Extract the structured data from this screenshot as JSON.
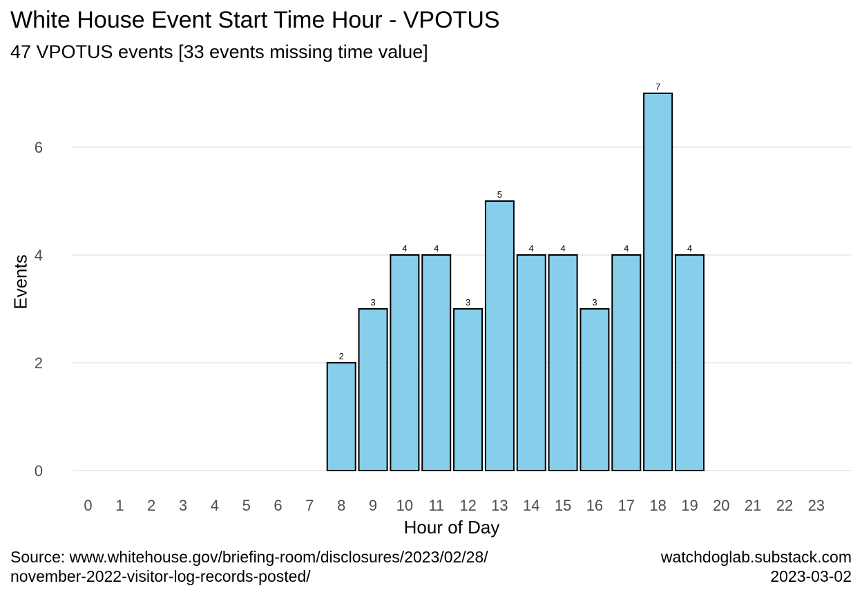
{
  "chart_data": {
    "type": "bar",
    "title": "White House Event Start Time Hour - VPOTUS",
    "subtitle": "47 VPOTUS events [33 events missing time value]",
    "xlabel": "Hour of Day",
    "ylabel": "Events",
    "categories": [
      "0",
      "1",
      "2",
      "3",
      "4",
      "5",
      "6",
      "7",
      "8",
      "9",
      "10",
      "11",
      "12",
      "13",
      "14",
      "15",
      "16",
      "17",
      "18",
      "19",
      "20",
      "21",
      "22",
      "23"
    ],
    "values": [
      0,
      0,
      0,
      0,
      0,
      0,
      0,
      0,
      2,
      3,
      4,
      4,
      3,
      5,
      4,
      4,
      3,
      4,
      7,
      4,
      0,
      0,
      0,
      0
    ],
    "data_labels": [
      "",
      "",
      "",
      "",
      "",
      "",
      "",
      "",
      "2",
      "3",
      "4",
      "4",
      "3",
      "5",
      "4",
      "4",
      "3",
      "4",
      "7",
      "4",
      "",
      "",
      "",
      ""
    ],
    "yticks": [
      0,
      2,
      4,
      6
    ],
    "ylim": [
      0,
      7
    ],
    "grid": "horizontal",
    "bar_color": "#87CEEB",
    "bar_border_color": "#000000",
    "grid_color": "#e6e6e6",
    "tick_label_color": "#4d4d4d"
  },
  "caption": {
    "source_line1": "Source: www.whitehouse.gov/briefing-room/disclosures/2023/02/28/",
    "source_line2": "november-2022-visitor-log-records-posted/",
    "site": "watchdoglab.substack.com",
    "date": "2023-03-02"
  }
}
